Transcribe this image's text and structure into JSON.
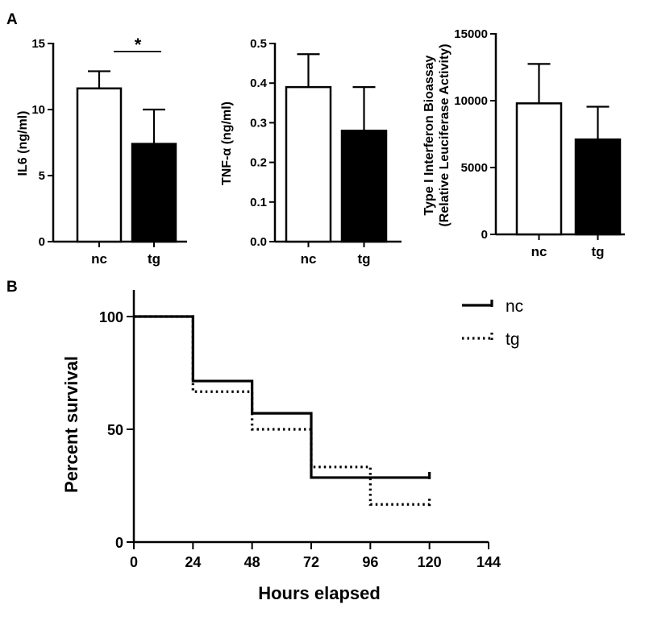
{
  "panels": {
    "a": "A",
    "b": "B"
  },
  "chart_data": [
    {
      "type": "bar",
      "categories": [
        "nc",
        "tg"
      ],
      "values": [
        11.6,
        7.4
      ],
      "errors": [
        1.3,
        2.6
      ],
      "ylabel": "IL6 (ng/ml)",
      "ylim": [
        0,
        15
      ],
      "yticks": [
        0,
        5,
        10,
        15
      ],
      "tick_labels": [
        "0",
        "5",
        "10",
        "15"
      ],
      "fills": [
        "#ffffff",
        "#000000"
      ],
      "annotation": "*"
    },
    {
      "type": "bar",
      "categories": [
        "nc",
        "tg"
      ],
      "values": [
        0.39,
        0.28
      ],
      "errors": [
        0.083,
        0.11
      ],
      "ylabel": "TNF-α (ng/ml)",
      "ylim": [
        0,
        0.5
      ],
      "yticks": [
        0,
        0.1,
        0.2,
        0.3,
        0.4,
        0.5
      ],
      "tick_labels": [
        "0.0",
        "0.1",
        "0.2",
        "0.3",
        "0.4",
        "0.5"
      ],
      "fills": [
        "#ffffff",
        "#000000"
      ]
    },
    {
      "type": "bar",
      "categories": [
        "nc",
        "tg"
      ],
      "values": [
        9800,
        7100
      ],
      "errors": [
        2950,
        2450
      ],
      "ylabel": "Type I Interferon Bioassay",
      "ylabel2": "(Relative Leuciferase Activity)",
      "ylim": [
        0,
        15000
      ],
      "yticks": [
        0,
        5000,
        10000,
        15000
      ],
      "tick_labels": [
        "0",
        "5000",
        "10000",
        "15000"
      ],
      "fills": [
        "#ffffff",
        "#000000"
      ]
    },
    {
      "type": "line",
      "xlabel": "Hours elapsed",
      "ylabel": "Percent survival",
      "xlim": [
        0,
        144
      ],
      "ylim": [
        0,
        110
      ],
      "xticks": [
        0,
        24,
        48,
        72,
        96,
        120,
        144
      ],
      "xtick_labels": [
        "0",
        "24",
        "48",
        "72",
        "96",
        "120",
        "144"
      ],
      "yticks": [
        0,
        50,
        100
      ],
      "ytick_labels": [
        "0",
        "50",
        "100"
      ],
      "series": [
        {
          "name": "nc",
          "style": "solid",
          "steps": [
            [
              0,
              100
            ],
            [
              24,
              71.4
            ],
            [
              48,
              57.1
            ],
            [
              72,
              28.6
            ],
            [
              120,
              28.6
            ]
          ]
        },
        {
          "name": "tg",
          "style": "dotted",
          "steps": [
            [
              0,
              100
            ],
            [
              24,
              66.7
            ],
            [
              48,
              50
            ],
            [
              72,
              33.3
            ],
            [
              96,
              16.7
            ],
            [
              120,
              16.7
            ]
          ]
        }
      ]
    }
  ]
}
